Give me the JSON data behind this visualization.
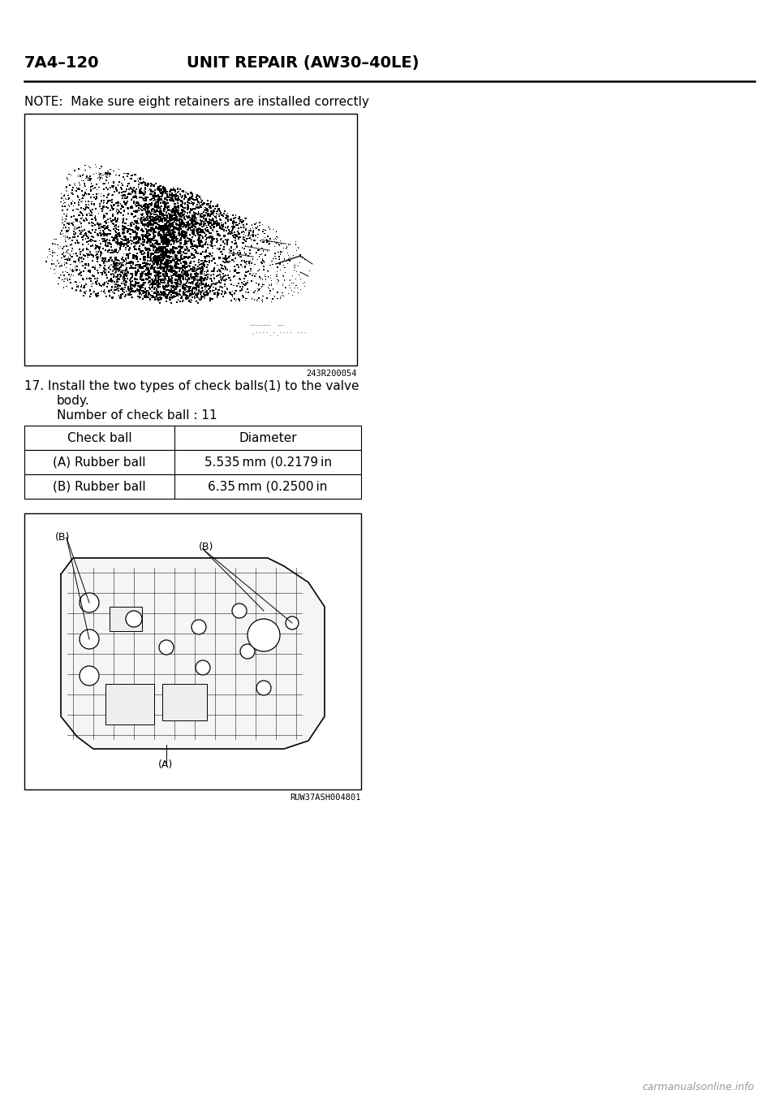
{
  "header_left": "7A4–120",
  "header_right": "UNIT REPAIR (AW30–40LE)",
  "note_text": "NOTE:  Make sure eight retainers are installed correctly",
  "image1_caption": "243R200054",
  "step17_line1": "17. Install the two types of check balls(1) to the valve",
  "step17_line2": "body.",
  "number_text": "Number of check ball : 11",
  "table_headers": [
    "Check ball",
    "Diameter"
  ],
  "table_rows": [
    [
      "(A) Rubber ball",
      "5.535 mm (0.2179 in"
    ],
    [
      "(B) Rubber ball",
      "6.35 mm (0.2500 in"
    ]
  ],
  "image2_caption": "RUW37ASH004801",
  "bg_color": "#ffffff",
  "text_color": "#000000",
  "footer_text": "carmanualsonline.info",
  "header_font_size": 14,
  "body_font_size": 11,
  "note_font_size": 11,
  "table_font_size": 11,
  "caption_font_size": 7.5,
  "footer_font_size": 9
}
